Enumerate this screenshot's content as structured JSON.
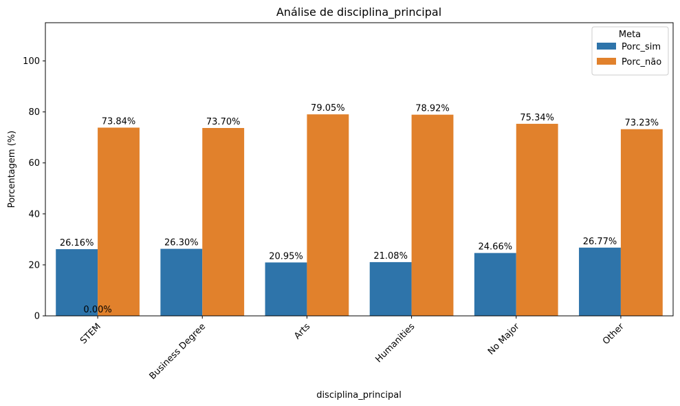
{
  "chart_data": {
    "type": "bar",
    "title": "Análise de disciplina_principal",
    "xlabel": "disciplina_principal",
    "ylabel": "Porcentagem (%)",
    "ylim": [
      0,
      115
    ],
    "yticks": [
      0,
      20,
      40,
      60,
      80,
      100
    ],
    "grid": false,
    "categories": [
      "STEM",
      "Business Degree",
      "Arts",
      "Humanities",
      "No Major",
      "Other"
    ],
    "series": [
      {
        "name": "Porc_sim",
        "color": "#2e74aa",
        "values": [
          26.16,
          26.3,
          20.95,
          21.08,
          24.66,
          26.77
        ],
        "labels": [
          "26.16%",
          "26.30%",
          "20.95%",
          "21.08%",
          "24.66%",
          "26.77%"
        ]
      },
      {
        "name": "Porc_não",
        "color": "#e1812c",
        "values": [
          73.84,
          73.7,
          79.05,
          78.92,
          75.34,
          73.23
        ],
        "labels": [
          "73.84%",
          "73.70%",
          "79.05%",
          "78.92%",
          "75.34%",
          "73.23%"
        ]
      }
    ],
    "highlight_color": "#ff0000",
    "highlighted_labels": [
      {
        "series": 0,
        "index": 5
      },
      {
        "series": 1,
        "index": 2
      }
    ],
    "extra_annotations": [
      {
        "text": "0.00%",
        "category": 0,
        "value": 0
      }
    ],
    "legend": {
      "title": "Meta",
      "position": "upper right"
    }
  }
}
